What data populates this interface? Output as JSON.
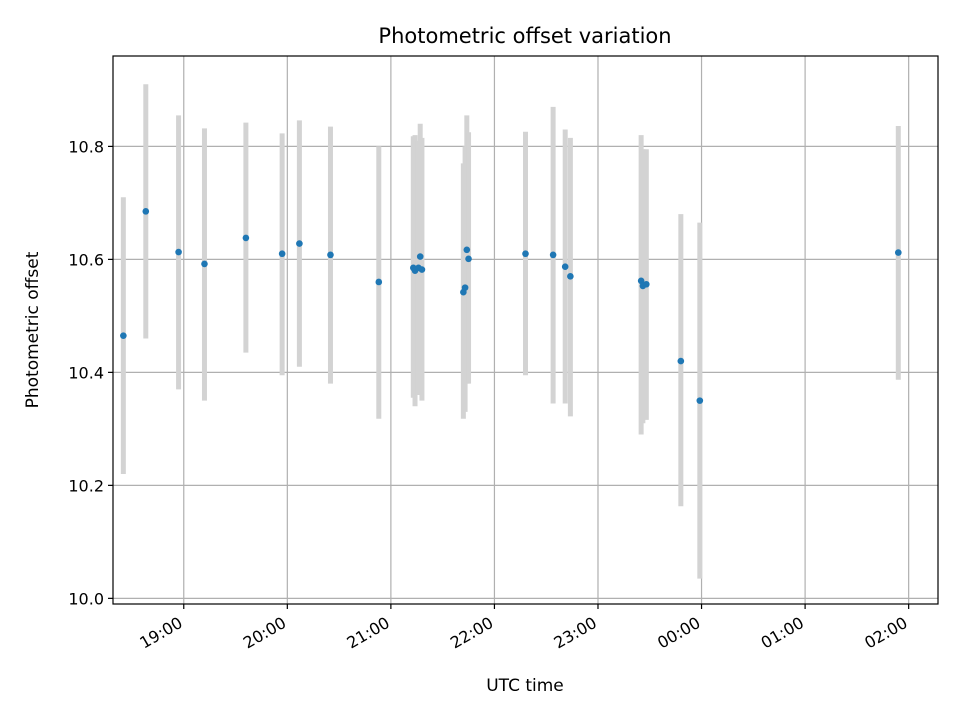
{
  "chart_data": {
    "type": "scatter",
    "title": "Photometric offset variation",
    "xlabel": "UTC time",
    "ylabel": "Photometric offset",
    "x_axis": {
      "kind": "time",
      "range": [
        "18:19",
        "02:17"
      ],
      "ticks": [
        {
          "value": "19:00",
          "label": "19:00"
        },
        {
          "value": "20:00",
          "label": "20:00"
        },
        {
          "value": "21:00",
          "label": "21:00"
        },
        {
          "value": "22:00",
          "label": "22:00"
        },
        {
          "value": "23:00",
          "label": "23:00"
        },
        {
          "value": "00:00",
          "label": "00:00"
        },
        {
          "value": "01:00",
          "label": "01:00"
        },
        {
          "value": "02:00",
          "label": "02:00"
        }
      ]
    },
    "y_axis": {
      "range": [
        9.99,
        10.96
      ],
      "ticks": [
        {
          "value": 10.0,
          "label": "10.0"
        },
        {
          "value": 10.2,
          "label": "10.2"
        },
        {
          "value": 10.4,
          "label": "10.4"
        },
        {
          "value": 10.6,
          "label": "10.6"
        },
        {
          "value": 10.8,
          "label": "10.8"
        }
      ]
    },
    "grid": true,
    "point_color": "#1f77b4",
    "errorbar_color": "#d3d3d3",
    "points": [
      {
        "x": "18:25",
        "y": 10.465,
        "ylow": 10.22,
        "yhigh": 10.71
      },
      {
        "x": "18:38",
        "y": 10.685,
        "ylow": 10.46,
        "yhigh": 10.91
      },
      {
        "x": "18:57",
        "y": 10.613,
        "ylow": 10.37,
        "yhigh": 10.855
      },
      {
        "x": "19:12",
        "y": 10.592,
        "ylow": 10.35,
        "yhigh": 10.832
      },
      {
        "x": "19:36",
        "y": 10.638,
        "ylow": 10.435,
        "yhigh": 10.842
      },
      {
        "x": "19:57",
        "y": 10.61,
        "ylow": 10.395,
        "yhigh": 10.823
      },
      {
        "x": "20:07",
        "y": 10.628,
        "ylow": 10.41,
        "yhigh": 10.846
      },
      {
        "x": "20:25",
        "y": 10.608,
        "ylow": 10.38,
        "yhigh": 10.835
      },
      {
        "x": "20:53",
        "y": 10.56,
        "ylow": 10.318,
        "yhigh": 10.8
      },
      {
        "x": "21:13",
        "y": 10.585,
        "ylow": 10.355,
        "yhigh": 10.818
      },
      {
        "x": "21:14",
        "y": 10.58,
        "ylow": 10.34,
        "yhigh": 10.82
      },
      {
        "x": "21:16",
        "y": 10.585,
        "ylow": 10.36,
        "yhigh": 10.81
      },
      {
        "x": "21:17",
        "y": 10.605,
        "ylow": 10.37,
        "yhigh": 10.84
      },
      {
        "x": "21:18",
        "y": 10.582,
        "ylow": 10.35,
        "yhigh": 10.815
      },
      {
        "x": "21:42",
        "y": 10.542,
        "ylow": 10.318,
        "yhigh": 10.77
      },
      {
        "x": "21:43",
        "y": 10.55,
        "ylow": 10.33,
        "yhigh": 10.8
      },
      {
        "x": "21:44",
        "y": 10.617,
        "ylow": 10.38,
        "yhigh": 10.855
      },
      {
        "x": "21:45",
        "y": 10.601,
        "ylow": 10.38,
        "yhigh": 10.825
      },
      {
        "x": "22:18",
        "y": 10.61,
        "ylow": 10.395,
        "yhigh": 10.826
      },
      {
        "x": "22:34",
        "y": 10.608,
        "ylow": 10.345,
        "yhigh": 10.87
      },
      {
        "x": "22:41",
        "y": 10.587,
        "ylow": 10.345,
        "yhigh": 10.83
      },
      {
        "x": "22:44",
        "y": 10.57,
        "ylow": 10.322,
        "yhigh": 10.815
      },
      {
        "x": "23:25",
        "y": 10.562,
        "ylow": 10.29,
        "yhigh": 10.82
      },
      {
        "x": "23:26",
        "y": 10.553,
        "ylow": 10.31,
        "yhigh": 10.795
      },
      {
        "x": "23:28",
        "y": 10.556,
        "ylow": 10.316,
        "yhigh": 10.795
      },
      {
        "x": "23:48",
        "y": 10.42,
        "ylow": 10.163,
        "yhigh": 10.68
      },
      {
        "x": "23:59",
        "y": 10.35,
        "ylow": 10.035,
        "yhigh": 10.665
      },
      {
        "x": "01:54",
        "y": 10.612,
        "ylow": 10.387,
        "yhigh": 10.836
      }
    ]
  }
}
